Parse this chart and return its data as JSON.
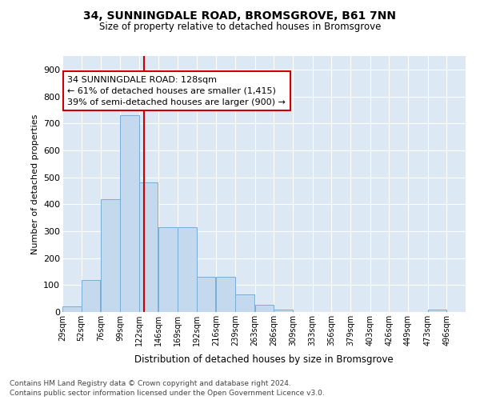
{
  "title": "34, SUNNINGDALE ROAD, BROMSGROVE, B61 7NN",
  "subtitle": "Size of property relative to detached houses in Bromsgrove",
  "xlabel": "Distribution of detached houses by size in Bromsgrove",
  "ylabel": "Number of detached properties",
  "bar_color": "#c5d9ee",
  "bar_edge_color": "#7aadd4",
  "background_color": "#dce9f5",
  "grid_color": "#ffffff",
  "annotation_line_color": "#cc0000",
  "annotation_box_color": "#cc0000",
  "annotation_text": "34 SUNNINGDALE ROAD: 128sqm\n← 61% of detached houses are smaller (1,415)\n39% of semi-detached houses are larger (900) →",
  "property_size": 128,
  "bin_edges": [
    29,
    52,
    76,
    99,
    122,
    146,
    169,
    192,
    216,
    239,
    263,
    286,
    309,
    333,
    356,
    379,
    403,
    426,
    449,
    473,
    496
  ],
  "bin_labels": [
    "29sqm",
    "52sqm",
    "76sqm",
    "99sqm",
    "122sqm",
    "146sqm",
    "169sqm",
    "192sqm",
    "216sqm",
    "239sqm",
    "263sqm",
    "286sqm",
    "309sqm",
    "333sqm",
    "356sqm",
    "379sqm",
    "403sqm",
    "426sqm",
    "449sqm",
    "473sqm",
    "496sqm"
  ],
  "counts": [
    20,
    120,
    420,
    730,
    480,
    315,
    315,
    130,
    130,
    65,
    28,
    10,
    0,
    0,
    0,
    0,
    0,
    0,
    0,
    8,
    0
  ],
  "ylim": [
    0,
    950
  ],
  "yticks": [
    0,
    100,
    200,
    300,
    400,
    500,
    600,
    700,
    800,
    900
  ],
  "footer_line1": "Contains HM Land Registry data © Crown copyright and database right 2024.",
  "footer_line2": "Contains public sector information licensed under the Open Government Licence v3.0."
}
